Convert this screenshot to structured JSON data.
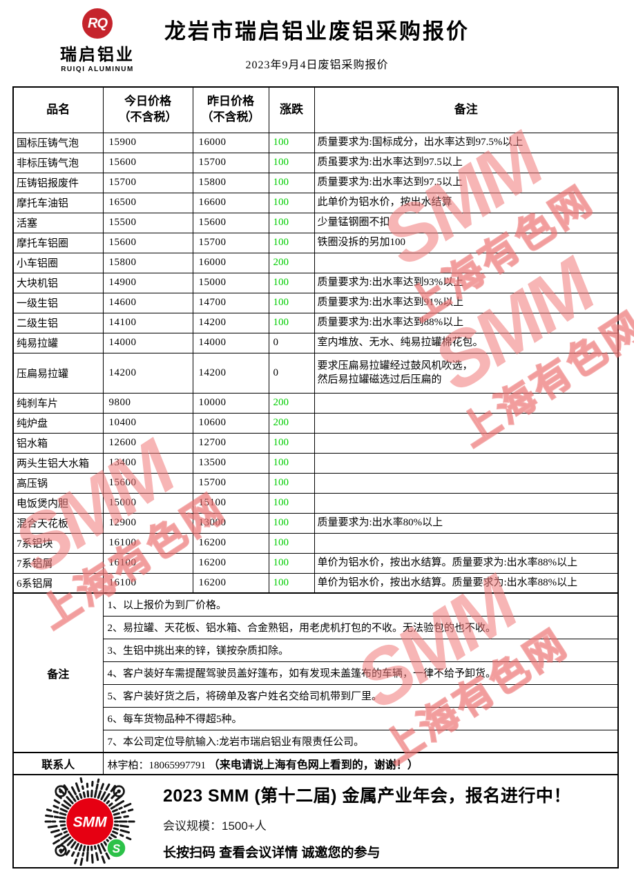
{
  "header": {
    "logo": {
      "monogram": "RQ",
      "name": "瑞启铝业",
      "name_en": "RUIQI ALUMINUM"
    },
    "title": "龙岩市瑞启铝业废铝采购报价",
    "subtitle": "2023年9月4日废铝采购报价"
  },
  "colors": {
    "up_green": "#00cd00",
    "watermark_pink": "#f07878",
    "logo_red": "#c5242c",
    "qr_center_red": "#e60012",
    "qr_badge_green": "#2cc148"
  },
  "table": {
    "columns": [
      "品名",
      "今日价格\n（不含税）",
      "昨日价格\n（不含税）",
      "涨跌",
      "备注"
    ],
    "rows": [
      {
        "name": "国标压铸气泡",
        "today": "15900",
        "yesterday": "16000",
        "change": "100",
        "remark": "质量要求为:国标成分，出水率达到97.5%以上"
      },
      {
        "name": "非标压铸气泡",
        "today": "15600",
        "yesterday": "15700",
        "change": "100",
        "remark": "质虽要求为:出水率达到97.5以上"
      },
      {
        "name": "压铸铝报废件",
        "today": "15700",
        "yesterday": "15800",
        "change": "100",
        "remark": "质量要求为:出水率达到97.5以上"
      },
      {
        "name": "摩托车油铝",
        "today": "16500",
        "yesterday": "16600",
        "change": "100",
        "remark": "此单价为铝水价，按出水结算"
      },
      {
        "name": "活塞",
        "today": "15500",
        "yesterday": "15600",
        "change": "100",
        "remark": "少量锰钢圈不扣"
      },
      {
        "name": "摩托车铝圈",
        "today": "15600",
        "yesterday": "15700",
        "change": "100",
        "remark": "铁圈没拆的另加100"
      },
      {
        "name": "小车铝圈",
        "today": "15800",
        "yesterday": "16000",
        "change": "200",
        "remark": ""
      },
      {
        "name": "大块机铝",
        "today": "14900",
        "yesterday": "15000",
        "change": "100",
        "remark": "质量要求为:出水率达到93%以上"
      },
      {
        "name": "一级生铝",
        "today": "14600",
        "yesterday": "14700",
        "change": "100",
        "remark": "质量要求为:出水率达到91%以上"
      },
      {
        "name": "二级生铝",
        "today": "14100",
        "yesterday": "14200",
        "change": "100",
        "remark": "质量要求为:出水率达到88%以上"
      },
      {
        "name": "纯易拉罐",
        "today": "14000",
        "yesterday": "14000",
        "change": "0",
        "remark": "室内堆放、无水、纯易拉罐棉花包。"
      },
      {
        "name": "压扁易拉罐",
        "today": "14200",
        "yesterday": "14200",
        "change": "0",
        "remark": "要求压扁易拉罐经过鼓风机吹选，\n然后易拉罐磁选过后压扁的"
      },
      {
        "name": "纯刹车片",
        "today": "9800",
        "yesterday": "10000",
        "change": "200",
        "remark": ""
      },
      {
        "name": "纯炉盘",
        "today": "10400",
        "yesterday": "10600",
        "change": "200",
        "remark": ""
      },
      {
        "name": "铝水箱",
        "today": "12600",
        "yesterday": "12700",
        "change": "100",
        "remark": ""
      },
      {
        "name": "两头生铝大水箱",
        "today": "13400",
        "yesterday": "13500",
        "change": "100",
        "remark": ""
      },
      {
        "name": "高压锅",
        "today": "15600",
        "yesterday": "15700",
        "change": "100",
        "remark": ""
      },
      {
        "name": "电饭煲内胆",
        "today": "15000",
        "yesterday": "15100",
        "change": "100",
        "remark": ""
      },
      {
        "name": "混合天花板",
        "today": "12900",
        "yesterday": "13000",
        "change": "100",
        "remark": "质量要求为:出水率80%以上"
      },
      {
        "name": "7系铝块",
        "today": "16100",
        "yesterday": "16200",
        "change": "100",
        "remark": ""
      },
      {
        "name": "7系铝屑",
        "today": "16100",
        "yesterday": "16200",
        "change": "100",
        "remark": "单价为铝水价，按出水结算。质量要求为:出水率88%以上"
      },
      {
        "name": "6系铝屑",
        "today": "16100",
        "yesterday": "16200",
        "change": "100",
        "remark": "单价为铝水价，按出水结算。质量要求为:出水率88%以上"
      }
    ]
  },
  "notes": {
    "label": "备注",
    "items": [
      "1、以上报价为到厂价格。",
      "2、易拉罐、天花板、铝水箱、合金熟铝，用老虎机打包的不收。无法验包的也不收。",
      "3、生铝中挑出来的锌，镁按杂质扣除。",
      "4、客户装好车需提醒驾驶员盖好篷布，如有发现未盖篷布的车辆，一律不给予卸货。",
      "5、客户装好货之后，将磅单及客户姓名交给司机带到厂里。",
      "6、每车货物品种不得超5种。",
      "7、本公司定位导航输入:龙岩市瑞启铝业有限责任公司。"
    ]
  },
  "contact": {
    "label": "联系人",
    "name_phone": "林宇柏：18065997791 ",
    "suffix": "（来电请说上海有色网上看到的，谢谢！）"
  },
  "watermark": {
    "brand": "SMM",
    "site": "上海有色网"
  },
  "footer": {
    "qr_center_label": "SMM",
    "headline": "2023 SMM (第十二届) 金属产业年会，报名进行中！",
    "scale": "会议规模：1500+人",
    "cta": "长按扫码  查看会议详情   诚邀您的参与"
  }
}
